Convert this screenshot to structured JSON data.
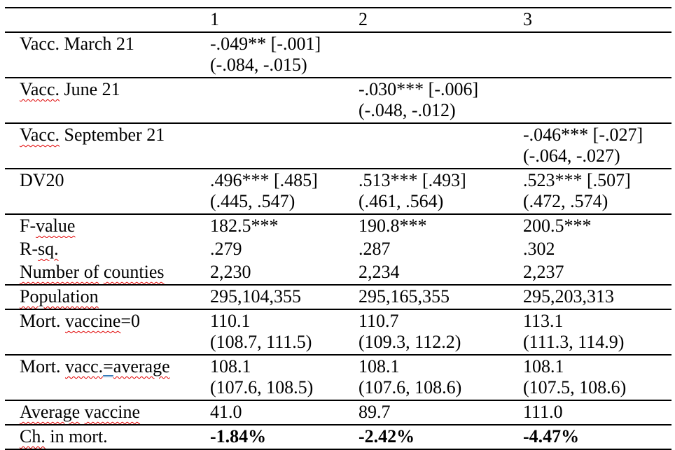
{
  "colors": {
    "spellcheck_underline": "#e00000",
    "grammar_underline": "#2e74b5",
    "table_border": "#000000",
    "text": "#000000"
  },
  "table": {
    "columns": [
      "",
      "1",
      "2",
      "3"
    ],
    "rows": [
      {
        "border": true,
        "label": [
          [
            "Vacc. March 21",
            ""
          ]
        ],
        "cells": [
          [
            "-.049** [-.001]",
            "(-.084, -.015)"
          ],
          null,
          null
        ]
      },
      {
        "border": true,
        "label": [
          [
            "Vacc.",
            "red"
          ],
          [
            " June 21",
            ""
          ]
        ],
        "cells": [
          null,
          [
            "-.030*** [-.006]",
            "(-.048, -.012)"
          ],
          null
        ]
      },
      {
        "border": true,
        "label": [
          [
            "Vacc.",
            "red"
          ],
          [
            " September 21",
            ""
          ]
        ],
        "cells": [
          null,
          null,
          [
            "-.046*** [-.027]",
            "(-.064, -.027)"
          ]
        ]
      },
      {
        "border": true,
        "label": [
          [
            "DV20",
            ""
          ]
        ],
        "cells": [
          [
            ".496*** [.485]",
            "(.445, .547)"
          ],
          [
            ".513*** [.493]",
            "(.461, .564)"
          ],
          [
            ".523*** [.507]",
            "(.472, .574)"
          ]
        ]
      },
      {
        "border": false,
        "label": [
          [
            "F-",
            ""
          ],
          [
            "value",
            "red"
          ]
        ],
        "cells": [
          [
            "182.5***"
          ],
          [
            "190.8***"
          ],
          [
            "200.5***"
          ]
        ]
      },
      {
        "border": false,
        "label": [
          [
            "R-",
            ""
          ],
          [
            "sq.",
            "red"
          ]
        ],
        "cells": [
          [
            ".279"
          ],
          [
            ".287"
          ],
          [
            ".302"
          ]
        ]
      },
      {
        "border": true,
        "label": [
          [
            "Number of",
            "red"
          ],
          [
            " ",
            ""
          ],
          [
            "counties",
            "red"
          ]
        ],
        "cells": [
          [
            "2,230"
          ],
          [
            "2,234"
          ],
          [
            "2,237"
          ]
        ]
      },
      {
        "border": true,
        "label": [
          [
            "Population",
            "red"
          ]
        ],
        "cells": [
          [
            "295,104,355"
          ],
          [
            "295,165,355"
          ],
          [
            "295,203,313"
          ]
        ]
      },
      {
        "border": true,
        "label": [
          [
            "Mort. ",
            ""
          ],
          [
            "vaccine",
            "red"
          ],
          [
            "=0",
            ""
          ]
        ],
        "cells": [
          [
            "110.1",
            "(108.7, 111.5)"
          ],
          [
            "110.7",
            "(109.3, 112.2)"
          ],
          [
            "113.1",
            "(111.3, 114.9)"
          ]
        ]
      },
      {
        "border": true,
        "label": [
          [
            "Mort. ",
            ""
          ],
          [
            "vacc.",
            "red"
          ],
          [
            "=",
            "blue"
          ],
          [
            "average",
            "red"
          ]
        ],
        "cells": [
          [
            "108.1",
            "(107.6, 108.5)"
          ],
          [
            "108.1",
            "(107.6, 108.6)"
          ],
          [
            "108.1",
            "(107.5, 108.6)"
          ]
        ]
      },
      {
        "border": true,
        "label": [
          [
            "Average",
            "red"
          ],
          [
            " ",
            ""
          ],
          [
            "vaccine",
            "red"
          ]
        ],
        "cells": [
          [
            "41.0"
          ],
          [
            "89.7"
          ],
          [
            "111.0"
          ]
        ]
      },
      {
        "border": true,
        "bold_values": true,
        "label": [
          [
            "Ch.",
            "red"
          ],
          [
            " in mort.",
            ""
          ]
        ],
        "cells": [
          [
            "-1.84%"
          ],
          [
            "-2.42%"
          ],
          [
            "-4.47%"
          ]
        ]
      }
    ]
  }
}
